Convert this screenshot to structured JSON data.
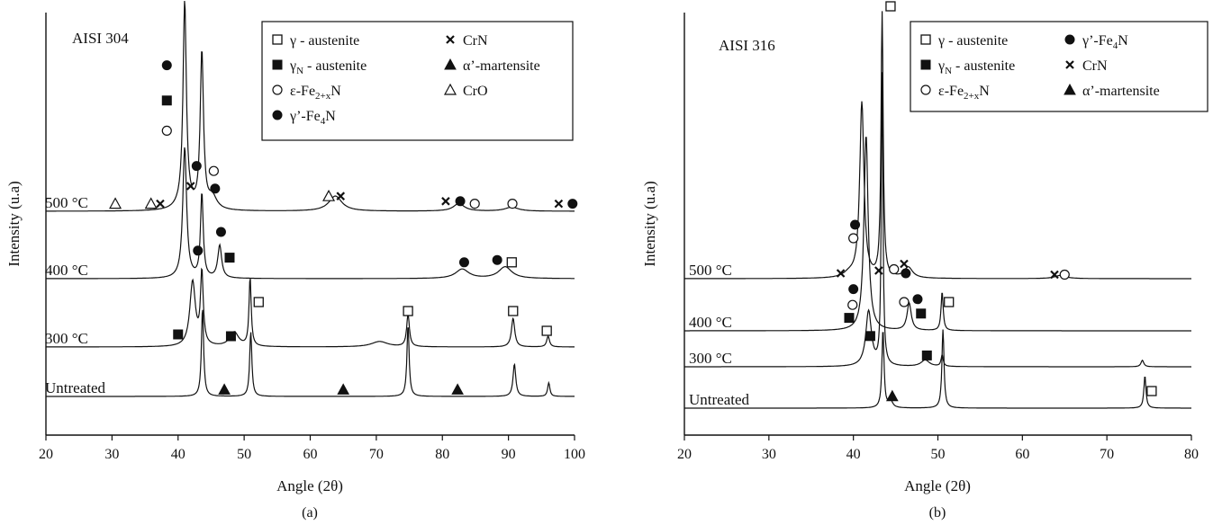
{
  "chart_data": [
    {
      "type": "line",
      "id": "a",
      "panel_label": "(a)",
      "title": "AISI 304",
      "xlabel": "Angle (2θ)",
      "ylabel": "Intensity (u.a)",
      "xlim": [
        20,
        100
      ],
      "xticks": [
        20,
        30,
        40,
        50,
        60,
        70,
        80,
        90,
        100
      ],
      "series": [
        {
          "name": "500 °C",
          "offset": 3.0,
          "baseline": 0.1,
          "peaks": [
            [
              41.0,
              4.0,
              0.3
            ],
            [
              43.6,
              3.1,
              0.3
            ],
            [
              41.0,
              0.15,
              1.2
            ],
            [
              45.2,
              0.25,
              0.8
            ],
            [
              63.8,
              0.3,
              1.2
            ],
            [
              82.5,
              0.15,
              1.0
            ],
            [
              90.5,
              0.08,
              1.2
            ]
          ]
        },
        {
          "name": "400 °C",
          "offset": 2.0,
          "baseline": 0.1,
          "peaks": [
            [
              41.0,
              2.8,
              0.35
            ],
            [
              43.6,
              1.8,
              0.25
            ],
            [
              46.3,
              0.7,
              0.35
            ],
            [
              83.0,
              0.2,
              1.2
            ],
            [
              89.5,
              0.25,
              1.2
            ]
          ]
        },
        {
          "name": "300 °C",
          "offset": 1.0,
          "baseline": 0.1,
          "peaks": [
            [
              42.2,
              1.8,
              0.5
            ],
            [
              43.6,
              2.0,
              0.25
            ],
            [
              48.5,
              0.4,
              0.8
            ],
            [
              50.9,
              1.9,
              0.2
            ],
            [
              70.5,
              0.15,
              1.5
            ],
            [
              74.8,
              0.9,
              0.25
            ],
            [
              90.7,
              0.8,
              0.3
            ],
            [
              96.0,
              0.3,
              0.25
            ]
          ]
        },
        {
          "name": "Untreated",
          "offset": 0.0,
          "baseline": 0.0,
          "peaks": [
            [
              43.7,
              2.6,
              0.2
            ],
            [
              51.0,
              1.9,
              0.2
            ],
            [
              74.8,
              2.1,
              0.2
            ],
            [
              90.9,
              0.95,
              0.25
            ],
            [
              96.1,
              0.4,
              0.2
            ]
          ]
        }
      ],
      "legend": {
        "placement": "top-right",
        "entries": [
          {
            "marker": "open-square",
            "label": "γ - austenite"
          },
          {
            "marker": "filled-square",
            "label": "γ",
            "sub": "N",
            "label2": " - austenite"
          },
          {
            "marker": "open-circle",
            "label": "ε-Fe",
            "sub": "2+x",
            "label2": "N"
          },
          {
            "marker": "filled-circle",
            "label": "γ’-Fe",
            "sub": "4",
            "label2": "N"
          },
          {
            "marker": "cross",
            "label": "CrN"
          },
          {
            "marker": "filled-triangle",
            "label": "α’-martensite"
          },
          {
            "marker": "open-triangle",
            "label": "CrO"
          }
        ]
      },
      "annotations": [
        {
          "marker": "open-square",
          "x": 45.2,
          "series": "500 °C",
          "y": 4.5
        },
        {
          "marker": "filled-circle",
          "x": 38.3,
          "series": "500 °C",
          "y": 2.9
        },
        {
          "marker": "filled-square",
          "x": 38.3,
          "series": "500 °C",
          "y": 2.2
        },
        {
          "marker": "open-circle",
          "x": 38.3,
          "series": "500 °C",
          "y": 1.6
        },
        {
          "marker": "filled-circle",
          "x": 42.8,
          "series": "500 °C",
          "y": 0.9
        },
        {
          "marker": "open-circle",
          "x": 45.4,
          "series": "500 °C",
          "y": 0.8
        },
        {
          "marker": "cross",
          "x": 41.9,
          "series": "500 °C",
          "y": 0.5
        },
        {
          "marker": "filled-circle",
          "x": 45.6,
          "series": "500 °C",
          "y": 0.45
        },
        {
          "marker": "open-triangle",
          "x": 30.5,
          "series": "500 °C",
          "y": 0.15
        },
        {
          "marker": "open-triangle",
          "x": 35.9,
          "series": "500 °C",
          "y": 0.15
        },
        {
          "marker": "cross",
          "x": 37.3,
          "series": "500 °C",
          "y": 0.15
        },
        {
          "marker": "open-triangle",
          "x": 62.8,
          "series": "500 °C",
          "y": 0.3
        },
        {
          "marker": "cross",
          "x": 64.6,
          "series": "500 °C",
          "y": 0.3
        },
        {
          "marker": "cross",
          "x": 80.5,
          "series": "500 °C",
          "y": 0.2
        },
        {
          "marker": "filled-circle",
          "x": 82.7,
          "series": "500 °C",
          "y": 0.2
        },
        {
          "marker": "open-circle",
          "x": 84.9,
          "series": "500 °C",
          "y": 0.15
        },
        {
          "marker": "open-circle",
          "x": 90.6,
          "series": "500 °C",
          "y": 0.15
        },
        {
          "marker": "cross",
          "x": 97.6,
          "series": "500 °C",
          "y": 0.15
        },
        {
          "marker": "filled-circle",
          "x": 99.7,
          "series": "500 °C",
          "y": 0.15
        },
        {
          "marker": "filled-circle",
          "x": 43.0,
          "series": "400 °C",
          "y": 0.6
        },
        {
          "marker": "filled-circle",
          "x": 46.5,
          "series": "400 °C",
          "y": 1.0
        },
        {
          "marker": "filled-square",
          "x": 47.8,
          "series": "400 °C",
          "y": 0.45
        },
        {
          "marker": "filled-circle",
          "x": 83.3,
          "series": "400 °C",
          "y": 0.35
        },
        {
          "marker": "filled-circle",
          "x": 88.3,
          "series": "400 °C",
          "y": 0.4
        },
        {
          "marker": "open-square",
          "x": 90.5,
          "series": "400 °C",
          "y": 0.35
        },
        {
          "marker": "filled-square",
          "x": 40.0,
          "series": "300 °C",
          "y": 0.35
        },
        {
          "marker": "filled-square",
          "x": 48.0,
          "series": "300 °C",
          "y": 0.3
        },
        {
          "marker": "open-square",
          "x": 52.2,
          "series": "300 °C",
          "y": 1.25
        },
        {
          "marker": "open-square",
          "x": 74.8,
          "series": "300 °C",
          "y": 1.0
        },
        {
          "marker": "open-square",
          "x": 90.7,
          "series": "300 °C",
          "y": 1.0
        },
        {
          "marker": "open-square",
          "x": 95.8,
          "series": "300 °C",
          "y": 0.45
        },
        {
          "marker": "filled-triangle",
          "x": 47.0,
          "series": "Untreated",
          "y": 0.2
        },
        {
          "marker": "filled-triangle",
          "x": 65.0,
          "series": "Untreated",
          "y": 0.2
        },
        {
          "marker": "filled-triangle",
          "x": 82.3,
          "series": "Untreated",
          "y": 0.2
        }
      ]
    },
    {
      "type": "line",
      "id": "b",
      "panel_label": "(b)",
      "title": "AISI 316",
      "xlabel": "Angle (2θ)",
      "ylabel": "Intensity (u.a)",
      "xlim": [
        20,
        80
      ],
      "xticks": [
        20,
        30,
        40,
        50,
        60,
        70,
        80
      ],
      "series": [
        {
          "name": "500 °C",
          "offset": 3.0,
          "baseline": 0.0,
          "peaks": [
            [
              41.0,
              6.5,
              0.3
            ],
            [
              43.4,
              9.8,
              0.15
            ],
            [
              46.5,
              0.4,
              0.6
            ],
            [
              39.5,
              0.15,
              0.8
            ],
            [
              64.5,
              0.12,
              0.8
            ]
          ]
        },
        {
          "name": "400 °C",
          "offset": 2.0,
          "baseline": 0.0,
          "peaks": [
            [
              41.5,
              6.8,
              0.3
            ],
            [
              46.6,
              0.95,
              0.3
            ],
            [
              50.5,
              1.35,
              0.15
            ]
          ]
        },
        {
          "name": "300 °C",
          "offset": 1.0,
          "baseline": 0.0,
          "peaks": [
            [
              41.8,
              1.7,
              0.4
            ],
            [
              43.4,
              9.0,
              0.12
            ],
            [
              48.5,
              0.2,
              0.6
            ],
            [
              50.5,
              0.35,
              0.15
            ],
            [
              74.2,
              0.2,
              0.2
            ]
          ]
        },
        {
          "name": "Untreated",
          "offset": 0.0,
          "baseline": 0.0,
          "peaks": [
            [
              43.5,
              2.3,
              0.15
            ],
            [
              44.4,
              0.2,
              0.3
            ],
            [
              50.6,
              2.3,
              0.15
            ],
            [
              74.5,
              0.95,
              0.15
            ]
          ]
        }
      ],
      "legend": {
        "placement": "top-right",
        "entries": [
          {
            "marker": "open-square",
            "label": "γ - austenite"
          },
          {
            "marker": "filled-square",
            "label": "γ",
            "sub": "N",
            "label2": " - austenite"
          },
          {
            "marker": "open-circle",
            "label": "ε-Fe",
            "sub": "2+x",
            "label2": "N"
          },
          {
            "marker": "filled-circle",
            "label": "γ’-Fe",
            "sub": "4",
            "label2": "N"
          },
          {
            "marker": "cross",
            "label": "CrN"
          },
          {
            "marker": "filled-triangle",
            "label": "α’-martensite"
          }
        ]
      },
      "annotations": [
        {
          "marker": "open-square",
          "x": 44.4,
          "series": "500 °C",
          "y": 10.1
        },
        {
          "marker": "filled-circle",
          "x": 40.2,
          "series": "500 °C",
          "y": 2.0
        },
        {
          "marker": "open-circle",
          "x": 40.0,
          "series": "500 °C",
          "y": 1.5
        },
        {
          "marker": "cross",
          "x": 38.5,
          "series": "500 °C",
          "y": 0.2
        },
        {
          "marker": "cross",
          "x": 43.0,
          "series": "500 °C",
          "y": 0.3
        },
        {
          "marker": "open-circle",
          "x": 44.8,
          "series": "500 °C",
          "y": 0.35
        },
        {
          "marker": "cross",
          "x": 46.0,
          "series": "500 °C",
          "y": 0.55
        },
        {
          "marker": "filled-circle",
          "x": 46.2,
          "series": "500 °C",
          "y": 0.2
        },
        {
          "marker": "cross",
          "x": 63.8,
          "series": "500 °C",
          "y": 0.15
        },
        {
          "marker": "open-circle",
          "x": 65.0,
          "series": "500 °C",
          "y": 0.15
        },
        {
          "marker": "filled-circle",
          "x": 40.0,
          "series": "400 °C",
          "y": 1.45
        },
        {
          "marker": "open-circle",
          "x": 39.9,
          "series": "400 °C",
          "y": 0.9
        },
        {
          "marker": "filled-square",
          "x": 39.5,
          "series": "400 °C",
          "y": 0.45
        },
        {
          "marker": "open-circle",
          "x": 46.0,
          "series": "400 °C",
          "y": 1.0
        },
        {
          "marker": "filled-circle",
          "x": 47.6,
          "series": "400 °C",
          "y": 1.1
        },
        {
          "marker": "filled-square",
          "x": 48.0,
          "series": "400 °C",
          "y": 0.6
        },
        {
          "marker": "open-square",
          "x": 51.3,
          "series": "400 °C",
          "y": 1.0
        },
        {
          "marker": "filled-square",
          "x": 42.0,
          "series": "300 °C",
          "y": 0.95
        },
        {
          "marker": "filled-square",
          "x": 48.7,
          "series": "300 °C",
          "y": 0.35
        },
        {
          "marker": "filled-triangle",
          "x": 44.6,
          "series": "Untreated",
          "y": 0.35
        },
        {
          "marker": "open-square",
          "x": 75.3,
          "series": "Untreated",
          "y": 0.5
        }
      ]
    }
  ]
}
